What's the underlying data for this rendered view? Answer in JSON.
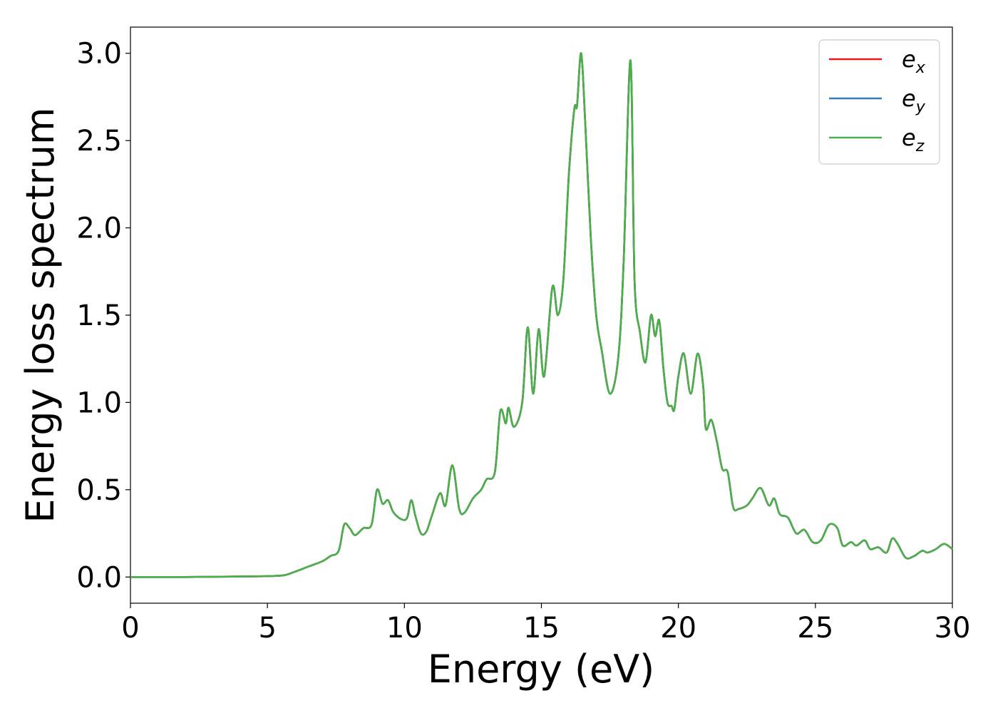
{
  "chart_data": {
    "type": "line",
    "title": "",
    "xlabel": "Energy (eV)",
    "ylabel": "Energy loss spectrum",
    "xlim": [
      0,
      30
    ],
    "ylim": [
      -0.15,
      3.15
    ],
    "xticks": [
      "0",
      "5",
      "10",
      "15",
      "20",
      "25",
      "30"
    ],
    "yticks": [
      "0.0",
      "0.5",
      "1.0",
      "1.5",
      "2.0",
      "2.5",
      "3.0"
    ],
    "grid": false,
    "legend_position": "top-right",
    "series": [
      {
        "name": "e",
        "subscript": "x",
        "color": "#e41a1c"
      },
      {
        "name": "e",
        "subscript": "y",
        "color": "#377eb8"
      },
      {
        "name": "e",
        "subscript": "z",
        "color": "#4daf4a"
      }
    ],
    "x": [
      0,
      2,
      4,
      5,
      5.6,
      6.0,
      6.5,
      7.0,
      7.3,
      7.6,
      7.8,
      8.0,
      8.2,
      8.5,
      8.8,
      9.0,
      9.2,
      9.4,
      9.6,
      9.9,
      10.1,
      10.25,
      10.4,
      10.6,
      10.8,
      11.0,
      11.3,
      11.5,
      11.75,
      12.0,
      12.2,
      12.5,
      12.8,
      13.0,
      13.3,
      13.5,
      13.7,
      13.8,
      14.0,
      14.3,
      14.5,
      14.7,
      14.9,
      15.1,
      15.4,
      15.6,
      15.8,
      16.0,
      16.2,
      16.3,
      16.45,
      16.6,
      16.8,
      17.0,
      17.2,
      17.5,
      17.8,
      18.0,
      18.25,
      18.4,
      18.6,
      18.8,
      19.0,
      19.15,
      19.3,
      19.45,
      19.6,
      19.75,
      19.85,
      20.0,
      20.2,
      20.45,
      20.7,
      20.9,
      21.0,
      21.2,
      21.4,
      21.6,
      21.8,
      22.0,
      22.2,
      22.5,
      22.7,
      23.0,
      23.3,
      23.5,
      23.7,
      24.0,
      24.3,
      24.6,
      24.9,
      25.2,
      25.5,
      25.8,
      26.0,
      26.3,
      26.5,
      26.8,
      27.0,
      27.3,
      27.6,
      27.8,
      28.0,
      28.3,
      28.6,
      28.9,
      29.1,
      29.4,
      29.7,
      30.0
    ],
    "y": [
      0.0,
      0.0,
      0.003,
      0.005,
      0.01,
      0.03,
      0.06,
      0.09,
      0.12,
      0.15,
      0.3,
      0.28,
      0.24,
      0.28,
      0.3,
      0.5,
      0.42,
      0.44,
      0.37,
      0.33,
      0.34,
      0.44,
      0.35,
      0.25,
      0.26,
      0.35,
      0.48,
      0.41,
      0.64,
      0.39,
      0.37,
      0.45,
      0.5,
      0.56,
      0.6,
      0.95,
      0.88,
      0.97,
      0.86,
      1.0,
      1.43,
      1.05,
      1.42,
      1.15,
      1.66,
      1.5,
      1.7,
      2.3,
      2.68,
      2.7,
      3.0,
      2.6,
      1.95,
      1.5,
      1.3,
      1.05,
      1.25,
      1.8,
      2.96,
      1.7,
      1.4,
      1.23,
      1.5,
      1.38,
      1.47,
      1.2,
      1.0,
      0.98,
      0.96,
      1.15,
      1.28,
      1.05,
      1.28,
      1.1,
      0.85,
      0.9,
      0.78,
      0.62,
      0.6,
      0.4,
      0.39,
      0.41,
      0.45,
      0.51,
      0.41,
      0.45,
      0.36,
      0.34,
      0.25,
      0.27,
      0.2,
      0.21,
      0.3,
      0.28,
      0.18,
      0.2,
      0.18,
      0.21,
      0.16,
      0.17,
      0.14,
      0.22,
      0.19,
      0.11,
      0.12,
      0.15,
      0.14,
      0.16,
      0.19,
      0.16
    ]
  }
}
